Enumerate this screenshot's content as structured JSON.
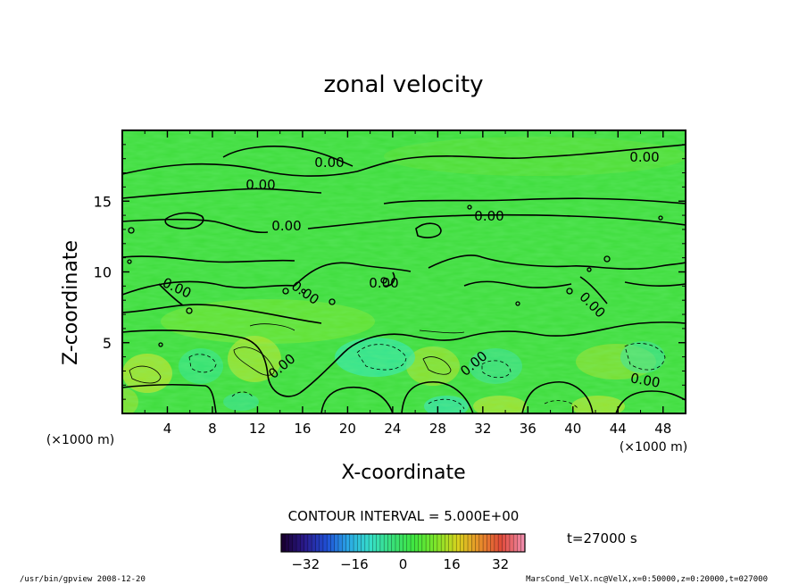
{
  "chart_data": {
    "type": "heatmap",
    "title": "zonal velocity",
    "xlabel": "X-coordinate",
    "ylabel": "Z-coordinate",
    "x_unit": "(×1000 m)",
    "z_unit": "(×1000 m)",
    "xlim": [
      0,
      50
    ],
    "ylim": [
      0,
      20
    ],
    "x_ticks": [
      4,
      8,
      12,
      16,
      20,
      24,
      28,
      32,
      36,
      40,
      44,
      48
    ],
    "y_ticks": [
      5,
      10,
      15
    ],
    "contour_interval_label": "CONTOUR INTERVAL = 5.000E+00",
    "contour_label": "0.00",
    "contour_label_count": 12,
    "time_label": "t=27000 s",
    "colorbar": {
      "range": [
        -40,
        40
      ],
      "ticks": [
        -32,
        -16,
        0,
        16,
        32
      ],
      "colors": [
        "#1a0033",
        "#2a1a8c",
        "#1f4fd6",
        "#2aa8e6",
        "#36e0c8",
        "#39e07a",
        "#3fe63f",
        "#7ee62a",
        "#d8d21e",
        "#e8902a",
        "#e04a3a",
        "#f08aa8"
      ]
    },
    "field_base_color": "#3ddc3a",
    "footer_left": "/usr/bin/gpview   2008-12-20",
    "footer_right": "MarsCond_VelX.nc@VelX,x=0:50000,z=0:20000,t=027000"
  }
}
